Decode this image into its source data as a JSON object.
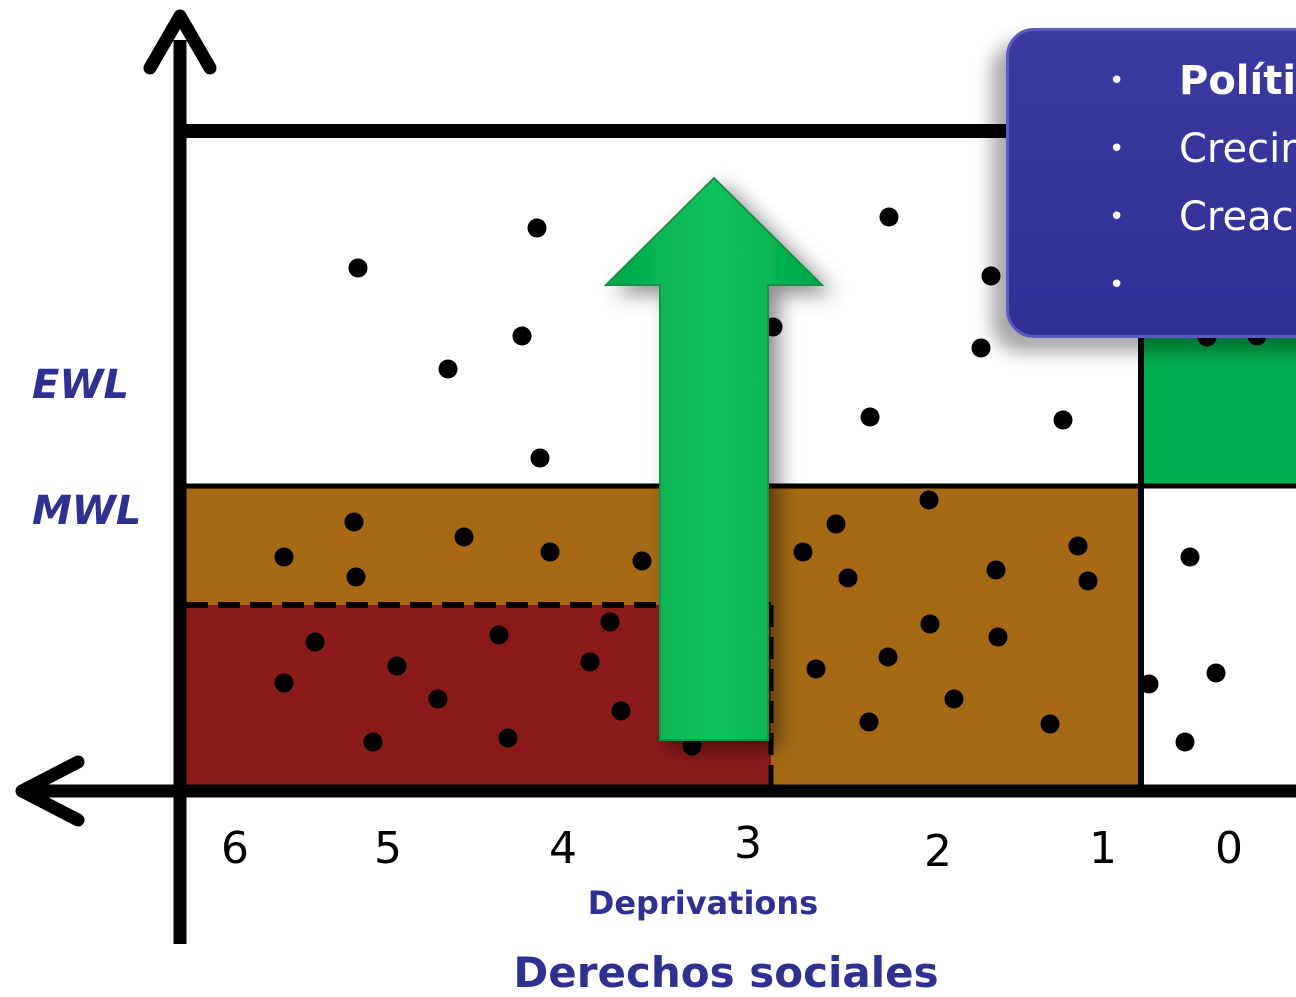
{
  "labels": {
    "ewl": "EWL",
    "mwl": "MWL",
    "x_ticks": [
      "6",
      "5",
      "4",
      "3",
      "2",
      "1",
      "0"
    ],
    "x_sublabel": "Deprivations",
    "x_title": "Derechos sociales"
  },
  "callout": {
    "items": [
      {
        "text": "Políti",
        "bold": true
      },
      {
        "text": "Crecir",
        "bold": false
      },
      {
        "text": "Creac",
        "bold": false
      },
      {
        "text": "",
        "bold": false
      }
    ]
  },
  "colors": {
    "axis_title": "#2E3192",
    "brown_region": "#A66A15",
    "dark_red_region": "#8B1A1A",
    "green_region": "#00B050",
    "callout_bg": "#2F3096"
  }
}
